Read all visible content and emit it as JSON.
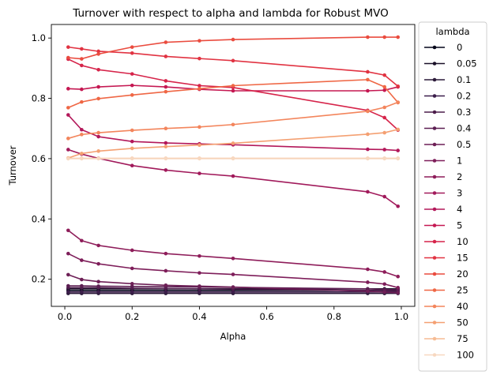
{
  "chart_data": {
    "type": "line",
    "title": "Turnover with respect to alpha and lambda for Robust MVO",
    "xlabel": "Alpha",
    "ylabel": "Turnover",
    "xlim": [
      -0.04,
      1.04
    ],
    "ylim": [
      0.11,
      1.045
    ],
    "xticks": [
      "0.0",
      "0.2",
      "0.4",
      "0.6",
      "0.8",
      "1.0"
    ],
    "yticks": [
      "0.2",
      "0.4",
      "0.6",
      "0.8",
      "1.0"
    ],
    "x": [
      0.01,
      0.05,
      0.1,
      0.2,
      0.3,
      0.4,
      0.5,
      0.9,
      0.95,
      0.99
    ],
    "grid": false,
    "legend": {
      "title": "lambda",
      "placement": "outside-right"
    },
    "series": [
      {
        "name": "0",
        "color": "#03051a",
        "values": [
          0.163,
          0.163,
          0.163,
          0.163,
          0.163,
          0.163,
          0.163,
          0.163,
          0.163,
          0.163
        ]
      },
      {
        "name": "0.05",
        "color": "#1a1028",
        "values": [
          0.168,
          0.168,
          0.168,
          0.168,
          0.168,
          0.168,
          0.168,
          0.168,
          0.168,
          0.168
        ]
      },
      {
        "name": "0.1",
        "color": "#2c1a3a",
        "values": [
          0.153,
          0.153,
          0.153,
          0.153,
          0.153,
          0.153,
          0.153,
          0.153,
          0.153,
          0.153
        ]
      },
      {
        "name": "0.2",
        "color": "#3b1d4a",
        "values": [
          0.158,
          0.158,
          0.158,
          0.158,
          0.158,
          0.158,
          0.158,
          0.158,
          0.158,
          0.158
        ]
      },
      {
        "name": "0.3",
        "color": "#4c1d4b",
        "values": [
          0.172,
          0.172,
          0.172,
          0.17,
          0.169,
          0.168,
          0.167,
          0.163,
          0.162,
          0.16
        ]
      },
      {
        "name": "0.4",
        "color": "#5c1e52",
        "values": [
          0.178,
          0.178,
          0.177,
          0.176,
          0.175,
          0.174,
          0.173,
          0.168,
          0.166,
          0.165
        ]
      },
      {
        "name": "0.5",
        "color": "#6d1f56",
        "values": [
          0.215,
          0.199,
          0.192,
          0.185,
          0.18,
          0.177,
          0.174,
          0.16,
          0.157,
          0.155
        ]
      },
      {
        "name": "1",
        "color": "#7e1e5a",
        "values": [
          0.285,
          0.263,
          0.251,
          0.236,
          0.228,
          0.221,
          0.216,
          0.19,
          0.184,
          0.172
        ]
      },
      {
        "name": "2",
        "color": "#8e1d5a",
        "values": [
          0.362,
          0.328,
          0.312,
          0.296,
          0.285,
          0.277,
          0.269,
          0.233,
          0.224,
          0.209
        ]
      },
      {
        "name": "3",
        "color": "#a11a5b",
        "values": [
          0.63,
          0.615,
          0.601,
          0.577,
          0.562,
          0.551,
          0.542,
          0.49,
          0.474,
          0.442
        ]
      },
      {
        "name": "4",
        "color": "#b3185a",
        "values": [
          0.745,
          0.696,
          0.673,
          0.657,
          0.652,
          0.649,
          0.646,
          0.631,
          0.63,
          0.627
        ]
      },
      {
        "name": "5",
        "color": "#c51852",
        "values": [
          0.832,
          0.83,
          0.838,
          0.843,
          0.838,
          0.83,
          0.825,
          0.825,
          0.827,
          0.838
        ]
      },
      {
        "name": "10",
        "color": "#d6244a",
        "values": [
          0.93,
          0.909,
          0.895,
          0.881,
          0.858,
          0.842,
          0.836,
          0.76,
          0.736,
          0.695
        ]
      },
      {
        "name": "15",
        "color": "#e13342",
        "values": [
          0.97,
          0.964,
          0.956,
          0.95,
          0.939,
          0.932,
          0.925,
          0.888,
          0.877,
          0.84
        ]
      },
      {
        "name": "20",
        "color": "#ea4c3f",
        "values": [
          0.935,
          0.931,
          0.947,
          0.97,
          0.986,
          0.991,
          0.995,
          1.003,
          1.003,
          1.003
        ]
      },
      {
        "name": "25",
        "color": "#ef6745",
        "values": [
          0.769,
          0.788,
          0.799,
          0.811,
          0.822,
          0.832,
          0.842,
          0.862,
          0.838,
          0.786
        ]
      },
      {
        "name": "40",
        "color": "#f3855c",
        "values": [
          0.667,
          0.68,
          0.686,
          0.694,
          0.7,
          0.705,
          0.713,
          0.757,
          0.77,
          0.787
        ]
      },
      {
        "name": "50",
        "color": "#f4a072",
        "values": [
          0.602,
          0.617,
          0.625,
          0.634,
          0.64,
          0.645,
          0.651,
          0.681,
          0.686,
          0.697
        ]
      },
      {
        "name": "75",
        "color": "#f6bc94",
        "values": [
          0.601,
          0.601,
          0.601,
          0.601,
          0.601,
          0.601,
          0.601,
          0.601,
          0.601,
          0.601
        ]
      },
      {
        "name": "100",
        "color": "#f7d8c0",
        "values": [
          0.6,
          0.6,
          0.6,
          0.6,
          0.6,
          0.6,
          0.6,
          0.6,
          0.6,
          0.6
        ]
      }
    ]
  }
}
